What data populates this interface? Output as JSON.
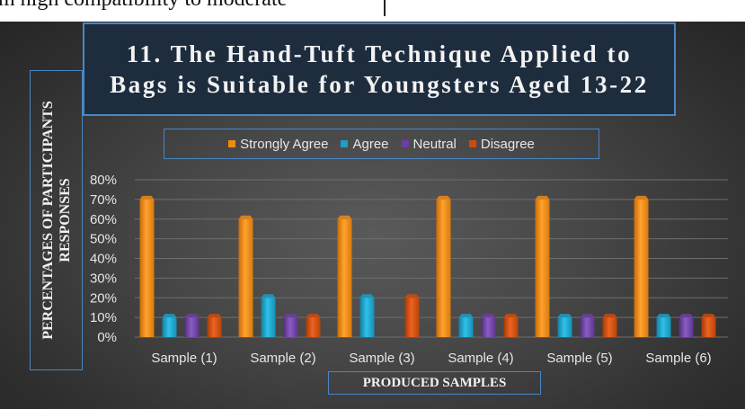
{
  "page": {
    "top_strip_text": "m high compatibility to moderate"
  },
  "colors": {
    "strongly_agree": "#f08a12",
    "agree": "#1a9fc6",
    "neutral": "#6b3fa0",
    "disagree": "#d04a0c",
    "frame": "#4a86c5",
    "gridline": "#6e6e6e"
  },
  "chart_data": {
    "type": "bar",
    "title": "11. The Hand-Tuft Technique Applied to Bags is Suitable for Youngsters Aged 13-22",
    "xlabel": "PRODUCED SAMPLES",
    "ylabel": "PERCENTAGES OF PARTICIPANTS RESPONSES",
    "categories": [
      "Sample (1)",
      "Sample (2)",
      "Sample (3)",
      "Sample (4)",
      "Sample (5)",
      "Sample (6)"
    ],
    "ylim": [
      0,
      0.8
    ],
    "yticks": [
      "0%",
      "10%",
      "20%",
      "30%",
      "40%",
      "50%",
      "60%",
      "70%",
      "80%"
    ],
    "grid": true,
    "legend_position": "top",
    "series": [
      {
        "name": "Strongly Agree",
        "color_key": "strongly_agree",
        "values": [
          0.7,
          0.6,
          0.6,
          0.7,
          0.7,
          0.7
        ]
      },
      {
        "name": "Agree",
        "color_key": "agree",
        "values": [
          0.1,
          0.2,
          0.2,
          0.1,
          0.1,
          0.1
        ]
      },
      {
        "name": "Neutral",
        "color_key": "neutral",
        "values": [
          0.1,
          0.1,
          0,
          0.1,
          0.1,
          0.1
        ]
      },
      {
        "name": "Disagree",
        "color_key": "disagree",
        "values": [
          0.1,
          0.1,
          0.2,
          0.1,
          0.1,
          0.1
        ]
      }
    ]
  }
}
